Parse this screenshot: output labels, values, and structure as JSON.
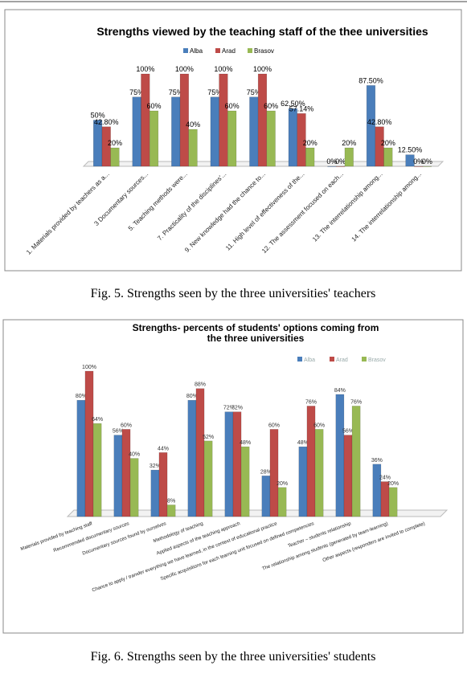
{
  "chart_data": [
    {
      "type": "bar",
      "title": "Strengths viewed by the teaching staff of the thee universities",
      "categories": [
        "1. Materials provided by teachers as a...",
        "3 Documentary sources...",
        "5. Teaching methods were...",
        "7. Practicality  of the disciplines'...",
        "9. New knowledge had the chance to...",
        "11. High level of effectiveness of the...",
        "12. The assessment  focused on each...",
        "13. The interrelationship among...",
        "14. The interrelationship among..."
      ],
      "series": [
        {
          "name": "Alba",
          "color": "#4a7ebb",
          "values": [
            50,
            75,
            75,
            75,
            75,
            62.5,
            0,
            87.5,
            12.5
          ],
          "value_labels": [
            "50%",
            "75%",
            "75%",
            "75%",
            "75%",
            "62.50%",
            "0%",
            "87.50%",
            "12.50%"
          ]
        },
        {
          "name": "Arad",
          "color": "#be4b48",
          "values": [
            42.8,
            100,
            100,
            100,
            100,
            57.14,
            0,
            42.8,
            0
          ],
          "value_labels": [
            "42.80%",
            "100%",
            "100%",
            "100%",
            "100%",
            "57.14%",
            "0%",
            "42.80%",
            "0%"
          ]
        },
        {
          "name": "Brasov",
          "color": "#98b954",
          "values": [
            20,
            60,
            40,
            60,
            60,
            20,
            20,
            20,
            0
          ],
          "value_labels": [
            "20%",
            "60%",
            "40%",
            "60%",
            "60%",
            "20%",
            "20%",
            "20%",
            "0%"
          ]
        }
      ]
    },
    {
      "type": "bar",
      "title": "Strengths- percents of students' options coming from the three universities",
      "categories": [
        "Materials provided by teaching staff",
        "Recommended documentary sources",
        "Documentary sources found by ourselves",
        "Methodology of teaching",
        "Applied aspects of the teaching approach",
        "Chance to apply / transfer everything we have learned, in the context of educational practice",
        "Specific acquisitions for each learning unit focused on defined competencies",
        "Teacher – students relationship",
        "The relationship among students (generated by team-learning)",
        "Other aspects (responders are invited to complete)"
      ],
      "series": [
        {
          "name": "Alba",
          "color": "#4a7ebb",
          "values": [
            80,
            56,
            32,
            80,
            72,
            28,
            48,
            84,
            36,
            null
          ],
          "value_labels": [
            "80%",
            "56%",
            "32%",
            "80%",
            "72%",
            "28%",
            "48%",
            "84%",
            "36%",
            null
          ]
        },
        {
          "name": "Arad",
          "color": "#be4b48",
          "values": [
            100,
            60,
            44,
            88,
            72,
            60,
            76,
            56,
            24,
            null
          ],
          "value_labels": [
            "100%",
            "60%",
            "44%",
            "88%",
            "72%",
            "60%",
            "76%",
            "56%",
            "24%",
            null
          ]
        },
        {
          "name": "Brasov",
          "color": "#98b954",
          "values": [
            64,
            40,
            8,
            52,
            48,
            20,
            60,
            76,
            20,
            null
          ],
          "value_labels": [
            "64%",
            "40%",
            "8%",
            "52%",
            "48%",
            "20%",
            "60%",
            "76%",
            "20%",
            null
          ]
        }
      ]
    }
  ],
  "captions": [
    "Fig. 5. Strengths seen by the three universities' teachers",
    "Fig.  6. Strengths seen by the three universities' students"
  ]
}
